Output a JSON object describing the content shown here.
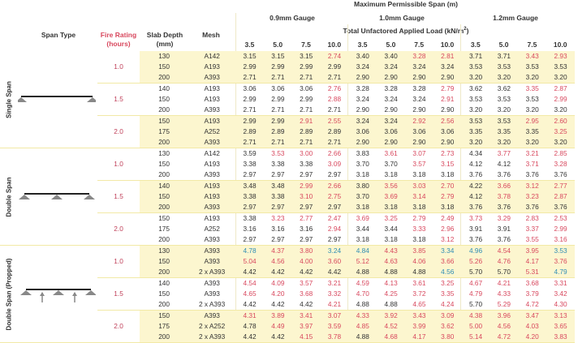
{
  "header": {
    "title": "Maximum Permissible Span (m)",
    "gauges": [
      "0.9mm Gauge",
      "1.0mm Gauge",
      "1.2mm Gauge"
    ],
    "load_label": "Total Unfactored Applied Load (kN/m",
    "load_label_sup": "2",
    "load_label_end": ")",
    "span_type": "Span Type",
    "fire_rating": [
      "Fire Rating",
      "(hours)"
    ],
    "slab_depth": [
      "Slab Depth",
      "(mm)"
    ],
    "mesh": "Mesh",
    "loads": [
      "3.5",
      "5.0",
      "7.5",
      "10.0",
      "3.5",
      "5.0",
      "7.5",
      "10.0",
      "3.5",
      "5.0",
      "7.5",
      "10.0"
    ]
  },
  "colors": {
    "black": "#333333",
    "red": "#d8485e",
    "blue": "#2f8db5",
    "highlight": "#fcf6cf"
  },
  "span_types": [
    {
      "label": "Single Span",
      "diagram": "single-span-beam",
      "groups": [
        {
          "fire": "1.0",
          "rows": [
            {
              "depth": "130",
              "mesh": "A142",
              "values": [
                "3.15",
                "3.15",
                "3.15",
                "2.74",
                "3.40",
                "3.40",
                "3.28",
                "2.81",
                "3.71",
                "3.71",
                "3.43",
                "2.93"
              ],
              "colors": "kkkrkkrrkkrr"
            },
            {
              "depth": "150",
              "mesh": "A193",
              "values": [
                "2.99",
                "2.99",
                "2.99",
                "2.99",
                "3.24",
                "3.24",
                "3.24",
                "3.24",
                "3.53",
                "3.53",
                "3.53",
                "3.53"
              ],
              "colors": "kkkkkkkkkkkk"
            },
            {
              "depth": "200",
              "mesh": "A393",
              "values": [
                "2.71",
                "2.71",
                "2.71",
                "2.71",
                "2.90",
                "2.90",
                "2.90",
                "2.90",
                "3.20",
                "3.20",
                "3.20",
                "3.20"
              ],
              "colors": "kkkkkkkkkkkk"
            }
          ]
        },
        {
          "fire": "1.5",
          "rows": [
            {
              "depth": "140",
              "mesh": "A193",
              "values": [
                "3.06",
                "3.06",
                "3.06",
                "2.76",
                "3.28",
                "3.28",
                "3.28",
                "2.79",
                "3.62",
                "3.62",
                "3.35",
                "2.87"
              ],
              "colors": "kkkrkkkrkkrr"
            },
            {
              "depth": "150",
              "mesh": "A193",
              "values": [
                "2.99",
                "2.99",
                "2.99",
                "2.88",
                "3.24",
                "3.24",
                "3.24",
                "2.91",
                "3.53",
                "3.53",
                "3.53",
                "2.99"
              ],
              "colors": "kkkrkkkrkkkr"
            },
            {
              "depth": "200",
              "mesh": "A393",
              "values": [
                "2.71",
                "2.71",
                "2.71",
                "2.71",
                "2.90",
                "2.90",
                "2.90",
                "2.90",
                "3.20",
                "3.20",
                "3.20",
                "3.20"
              ],
              "colors": "kkkkkkkkkkkk"
            }
          ]
        },
        {
          "fire": "2.0",
          "rows": [
            {
              "depth": "150",
              "mesh": "A193",
              "values": [
                "2.99",
                "2.99",
                "2.91",
                "2.55",
                "3.24",
                "3.24",
                "2.92",
                "2.56",
                "3.53",
                "3.53",
                "2.95",
                "2.60"
              ],
              "colors": "kkrrkkrrkkrr"
            },
            {
              "depth": "175",
              "mesh": "A252",
              "values": [
                "2.89",
                "2.89",
                "2.89",
                "2.89",
                "3.06",
                "3.06",
                "3.06",
                "3.06",
                "3.35",
                "3.35",
                "3.35",
                "3.25"
              ],
              "colors": "kkkkkkkkkkkr"
            },
            {
              "depth": "200",
              "mesh": "A393",
              "values": [
                "2.71",
                "2.71",
                "2.71",
                "2.71",
                "2.90",
                "2.90",
                "2.90",
                "2.90",
                "3.20",
                "3.20",
                "3.20",
                "3.20"
              ],
              "colors": "kkkkkkkkkkkk"
            }
          ]
        }
      ]
    },
    {
      "label": "Double Span",
      "diagram": "double-span-beam",
      "groups": [
        {
          "fire": "1.0",
          "rows": [
            {
              "depth": "130",
              "mesh": "A142",
              "values": [
                "3.59",
                "3.53",
                "3.00",
                "2.66",
                "3.83",
                "3.61",
                "3.07",
                "2.73",
                "4.34",
                "3.77",
                "3.21",
                "2.85"
              ],
              "colors": "krrrkrrrkrrr"
            },
            {
              "depth": "150",
              "mesh": "A193",
              "values": [
                "3.38",
                "3.38",
                "3.38",
                "3.09",
                "3.70",
                "3.70",
                "3.57",
                "3.15",
                "4.12",
                "4.12",
                "3.71",
                "3.28"
              ],
              "colors": "kkkrkkrrkkrr"
            },
            {
              "depth": "200",
              "mesh": "A393",
              "values": [
                "2.97",
                "2.97",
                "2.97",
                "2.97",
                "3.18",
                "3.18",
                "3.18",
                "3.18",
                "3.76",
                "3.76",
                "3.76",
                "3.76"
              ],
              "colors": "kkkkkkkkkkkk"
            }
          ]
        },
        {
          "fire": "1.5",
          "rows": [
            {
              "depth": "140",
              "mesh": "A193",
              "values": [
                "3.48",
                "3.48",
                "2.99",
                "2.66",
                "3.80",
                "3.56",
                "3.03",
                "2.70",
                "4.22",
                "3.66",
                "3.12",
                "2.77"
              ],
              "colors": "kkrrkrrrkrrr"
            },
            {
              "depth": "150",
              "mesh": "A193",
              "values": [
                "3.38",
                "3.38",
                "3.10",
                "2.75",
                "3.70",
                "3.69",
                "3.14",
                "2.79",
                "4.12",
                "3.78",
                "3.23",
                "2.87"
              ],
              "colors": "kkrrkrrrkrrr"
            },
            {
              "depth": "200",
              "mesh": "A393",
              "values": [
                "2.97",
                "2.97",
                "2.97",
                "2.97",
                "3.18",
                "3.18",
                "3.18",
                "3.18",
                "3.76",
                "3.76",
                "3.76",
                "3.76"
              ],
              "colors": "kkkkkkkkkkkk"
            }
          ]
        },
        {
          "fire": "2.0",
          "rows": [
            {
              "depth": "150",
              "mesh": "A193",
              "values": [
                "3.38",
                "3.23",
                "2.77",
                "2.47",
                "3.69",
                "3.25",
                "2.79",
                "2.49",
                "3.73",
                "3.29",
                "2.83",
                "2.53"
              ],
              "colors": "krrrrrrrrrrr"
            },
            {
              "depth": "175",
              "mesh": "A252",
              "values": [
                "3.16",
                "3.16",
                "3.16",
                "2.94",
                "3.44",
                "3.44",
                "3.33",
                "2.96",
                "3.91",
                "3.91",
                "3.37",
                "2.99"
              ],
              "colors": "kkkrkkrrkkrr"
            },
            {
              "depth": "200",
              "mesh": "A393",
              "values": [
                "2.97",
                "2.97",
                "2.97",
                "2.97",
                "3.18",
                "3.18",
                "3.18",
                "3.12",
                "3.76",
                "3.76",
                "3.55",
                "3.16"
              ],
              "colors": "kkkkkkkrkkrr"
            }
          ]
        }
      ]
    },
    {
      "label": "Double Span (Propped)",
      "diagram": "propped-double-span-beam",
      "groups": [
        {
          "fire": "1.0",
          "rows": [
            {
              "depth": "130",
              "mesh": "A393",
              "values": [
                "4.78",
                "4.37",
                "3.80",
                "3.24",
                "4.84",
                "4.43",
                "3.85",
                "3.34",
                "4.96",
                "4.54",
                "3.95",
                "3.53"
              ],
              "colors": "brrbbrrbbrrb"
            },
            {
              "depth": "150",
              "mesh": "A393",
              "values": [
                "5.04",
                "4.56",
                "4.00",
                "3.60",
                "5.12",
                "4.63",
                "4.06",
                "3.66",
                "5.26",
                "4.76",
                "4.17",
                "3.76"
              ],
              "colors": "rrrrrrrrrrrr"
            },
            {
              "depth": "200",
              "mesh": "2 x A393",
              "values": [
                "4.42",
                "4.42",
                "4.42",
                "4.42",
                "4.88",
                "4.88",
                "4.88",
                "4.56",
                "5.70",
                "5.70",
                "5.31",
                "4.79"
              ],
              "colors": "kkkkkkkbkkrb"
            }
          ]
        },
        {
          "fire": "1.5",
          "rows": [
            {
              "depth": "140",
              "mesh": "A393",
              "values": [
                "4.54",
                "4.09",
                "3.57",
                "3.21",
                "4.59",
                "4.13",
                "3.61",
                "3.25",
                "4.67",
                "4.21",
                "3.68",
                "3.31"
              ],
              "colors": "rrrrrrrrrrrr"
            },
            {
              "depth": "150",
              "mesh": "A393",
              "values": [
                "4.65",
                "4.20",
                "3.68",
                "3.32",
                "4.70",
                "4.25",
                "3.72",
                "3.35",
                "4.79",
                "4.33",
                "3.79",
                "3.42"
              ],
              "colors": "rrrrrrrrrrrr"
            },
            {
              "depth": "200",
              "mesh": "2 x A393",
              "values": [
                "4.42",
                "4.42",
                "4.42",
                "4.21",
                "4.88",
                "4.88",
                "4.65",
                "4.24",
                "5.70",
                "5.29",
                "4.72",
                "4.30"
              ],
              "colors": "kkkrkkrrkrrr"
            }
          ]
        },
        {
          "fire": "2.0",
          "rows": [
            {
              "depth": "150",
              "mesh": "A393",
              "values": [
                "4.31",
                "3.89",
                "3.41",
                "3.07",
                "4.33",
                "3.92",
                "3.43",
                "3.09",
                "4.38",
                "3.96",
                "3.47",
                "3.13"
              ],
              "colors": "rrrrrrrrrrrr"
            },
            {
              "depth": "175",
              "mesh": "2 x A252",
              "values": [
                "4.78",
                "4.49",
                "3.97",
                "3.59",
                "4.85",
                "4.52",
                "3.99",
                "3.62",
                "5.00",
                "4.56",
                "4.03",
                "3.65"
              ],
              "colors": "krrrrrrrrrrr"
            },
            {
              "depth": "200",
              "mesh": "2 x A393",
              "values": [
                "4.42",
                "4.42",
                "4.15",
                "3.78",
                "4.88",
                "4.68",
                "4.17",
                "3.80",
                "5.14",
                "4.72",
                "4.20",
                "3.83"
              ],
              "colors": "kkrrkrrrrrrr"
            }
          ]
        }
      ]
    }
  ]
}
